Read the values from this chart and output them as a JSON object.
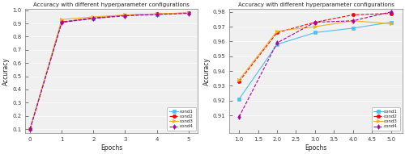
{
  "title": "Accuracy with different hyperparameter configurations",
  "xlabel": "Epochs",
  "ylabel": "Accuracy",
  "left": {
    "xlim": [
      -0.15,
      5.3
    ],
    "ylim": [
      0.07,
      1.01
    ],
    "yticks": [
      0.1,
      0.2,
      0.3,
      0.4,
      0.5,
      0.6,
      0.7,
      0.8,
      0.9,
      1.0
    ],
    "xticks": [
      0,
      1,
      2,
      3,
      4,
      5
    ],
    "cond1": {
      "x": [
        0,
        1,
        2,
        3,
        4,
        5
      ],
      "y": [
        0.1,
        0.91,
        0.94,
        0.962,
        0.97,
        0.978
      ]
    },
    "cond2": {
      "x": [
        0,
        1,
        2,
        3,
        4,
        5
      ],
      "y": [
        0.1,
        0.912,
        0.942,
        0.963,
        0.972,
        0.98
      ]
    },
    "cond3": {
      "x": [
        0,
        1,
        2,
        3,
        4,
        5
      ],
      "y": [
        0.1,
        0.93,
        0.95,
        0.965,
        0.973,
        0.981
      ]
    },
    "cond4": {
      "x": [
        0,
        1,
        2,
        3,
        4,
        5
      ],
      "y": [
        0.1,
        0.908,
        0.938,
        0.958,
        0.968,
        0.977
      ]
    }
  },
  "right": {
    "xlim": [
      0.75,
      5.3
    ],
    "ylim": [
      0.898,
      0.982
    ],
    "yticks": [
      0.91,
      0.92,
      0.93,
      0.94,
      0.95,
      0.96,
      0.97,
      0.98
    ],
    "xticks": [
      1.0,
      1.5,
      2.0,
      2.5,
      3.0,
      3.5,
      4.0,
      4.5,
      5.0
    ],
    "cond1": {
      "x": [
        1,
        2,
        3,
        4,
        5
      ],
      "y": [
        0.921,
        0.958,
        0.966,
        0.969,
        0.973
      ]
    },
    "cond2": {
      "x": [
        1,
        2,
        3,
        4,
        5
      ],
      "y": [
        0.933,
        0.966,
        0.973,
        0.978,
        0.979
      ]
    },
    "cond3": {
      "x": [
        1,
        2,
        3,
        4,
        5
      ],
      "y": [
        0.934,
        0.967,
        0.97,
        0.974,
        0.972
      ]
    },
    "cond4": {
      "x": [
        1,
        2,
        3,
        4,
        5
      ],
      "y": [
        0.909,
        0.959,
        0.973,
        0.974,
        0.98
      ]
    }
  },
  "colors": {
    "cond1": "#4DBEEE",
    "cond2": "#FF0000",
    "cond3": "#EDB120",
    "cond4": "#AA00AA"
  },
  "linestyles": {
    "cond1": "-",
    "cond2": "--",
    "cond3": "-",
    "cond4": "--"
  },
  "markers": {
    "cond1": "s",
    "cond2": "o",
    "cond3": ">",
    "cond4": "d"
  },
  "markerfacecolors": {
    "cond1": "#4DBEEE",
    "cond2": "#FF0000",
    "cond3": "#EDB120",
    "cond4": "#AA00AA"
  },
  "legend_labels": [
    "cond1",
    "cond2",
    "cond3",
    "cond4"
  ],
  "bg_color": "#F0F0F0",
  "fig_bg_color": "#FFFFFF"
}
